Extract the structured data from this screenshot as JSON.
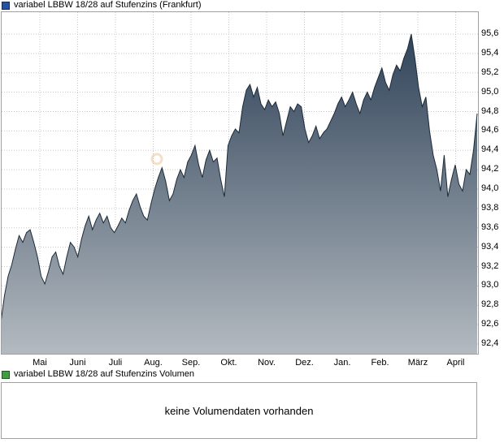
{
  "header": {
    "legend": "variabel LBBW 18/28 auf Stufenzins (Frankfurt)",
    "marker_color": "#2353a0"
  },
  "volume_panel": {
    "legend": "variabel LBBW 18/28 auf Stufenzins Volumen",
    "marker_color": "#3f9e3f",
    "message": "keine Volumendaten vorhanden"
  },
  "chart_data": {
    "type": "area",
    "title": "variabel LBBW 18/28 auf Stufenzins (Frankfurt)",
    "xlabel": "",
    "ylabel": "",
    "ylim": [
      92.4,
      95.6
    ],
    "grid": true,
    "legend_position": "top-left",
    "x_ticks": [
      "Mai",
      "Juni",
      "Juli",
      "Aug.",
      "Sep.",
      "Okt.",
      "Nov.",
      "Dez.",
      "Jan.",
      "Feb.",
      "März",
      "April"
    ],
    "y_ticks": [
      92.4,
      92.6,
      92.8,
      93.0,
      93.2,
      93.4,
      93.6,
      93.8,
      94.0,
      94.2,
      94.4,
      94.6,
      94.8,
      95.0,
      95.2,
      95.4,
      95.6
    ],
    "y_tick_labels": [
      "92,4",
      "92,6",
      "92,8",
      "93,0",
      "93,2",
      "93,4",
      "93,6",
      "93,8",
      "94,0",
      "94,2",
      "94,4",
      "94,6",
      "94,8",
      "95,0",
      "95,2",
      "95,4",
      "95,6"
    ],
    "series": [
      {
        "name": "variabel LBBW 18/28 auf Stufenzins",
        "values": [
          92.62,
          92.9,
          93.1,
          93.22,
          93.38,
          93.52,
          93.45,
          93.55,
          93.58,
          93.45,
          93.3,
          93.1,
          93.02,
          93.15,
          93.3,
          93.35,
          93.2,
          93.12,
          93.3,
          93.45,
          93.4,
          93.3,
          93.48,
          93.62,
          93.72,
          93.58,
          93.68,
          93.75,
          93.65,
          93.72,
          93.6,
          93.55,
          93.62,
          93.7,
          93.65,
          93.78,
          93.88,
          93.95,
          93.82,
          93.72,
          93.68,
          93.85,
          94.0,
          94.12,
          94.22,
          94.08,
          93.88,
          93.95,
          94.1,
          94.2,
          94.12,
          94.28,
          94.35,
          94.45,
          94.25,
          94.12,
          94.3,
          94.4,
          94.28,
          94.32,
          94.1,
          93.92,
          94.45,
          94.55,
          94.62,
          94.58,
          94.85,
          95.02,
          95.08,
          94.95,
          95.05,
          94.88,
          94.82,
          94.92,
          94.85,
          94.9,
          94.78,
          94.55,
          94.7,
          94.85,
          94.8,
          94.88,
          94.85,
          94.62,
          94.48,
          94.55,
          94.65,
          94.52,
          94.58,
          94.62,
          94.7,
          94.78,
          94.88,
          94.95,
          94.85,
          94.92,
          95.0,
          94.88,
          94.78,
          94.92,
          95.0,
          94.92,
          95.05,
          95.15,
          95.25,
          95.1,
          95.02,
          95.18,
          95.28,
          95.22,
          95.35,
          95.45,
          95.6,
          95.35,
          95.05,
          94.85,
          94.95,
          94.6,
          94.35,
          94.2,
          93.98,
          94.35,
          93.92,
          94.1,
          94.25,
          94.05,
          93.98,
          94.2,
          94.15,
          94.4,
          94.78
        ]
      }
    ],
    "colors": {
      "line": "#1b2a38",
      "fill_top": "#31445a",
      "fill_bottom": "#b3bac0",
      "grid": "#c8c8c8",
      "border": "#a0a0a0"
    }
  }
}
